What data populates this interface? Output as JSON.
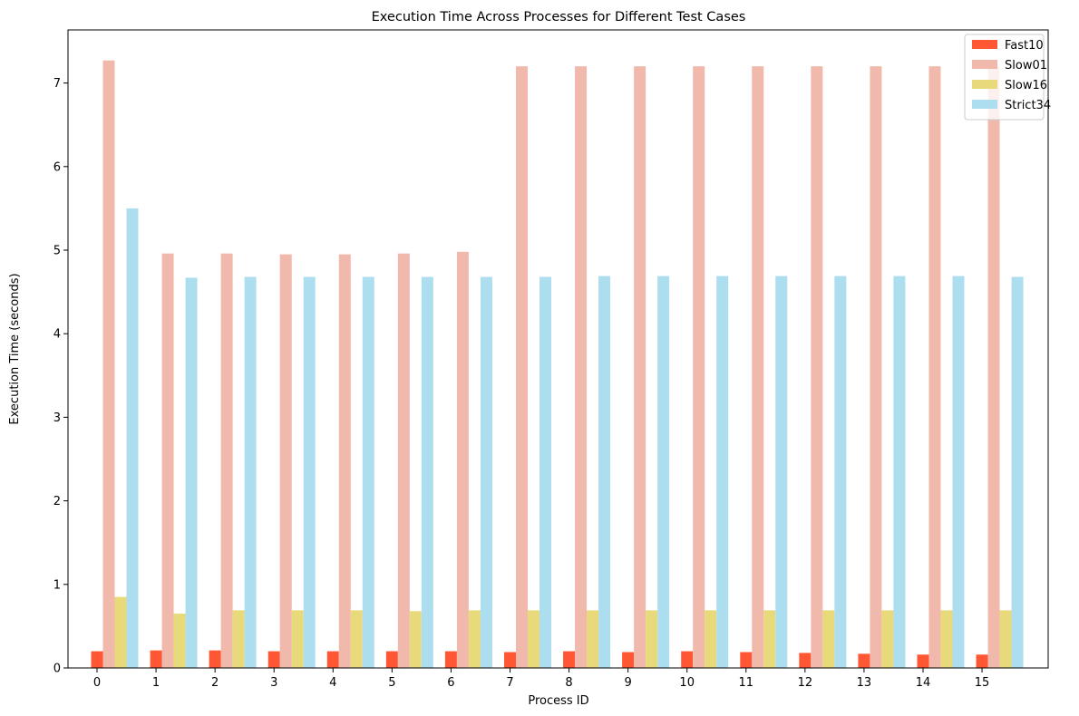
{
  "chart_data": {
    "type": "bar",
    "title": "Execution Time Across Processes for Different Test Cases",
    "xlabel": "Process ID",
    "ylabel": "Execution Time (seconds)",
    "categories": [
      "0",
      "1",
      "2",
      "3",
      "4",
      "5",
      "6",
      "7",
      "8",
      "9",
      "10",
      "11",
      "12",
      "13",
      "14",
      "15"
    ],
    "ylim": [
      0,
      7.65
    ],
    "yticks": [
      0,
      1,
      2,
      3,
      4,
      5,
      6,
      7
    ],
    "grid": false,
    "legend_position": "top-right",
    "series": [
      {
        "name": "Fast10",
        "color": "#ff5733",
        "values": [
          0.2,
          0.21,
          0.21,
          0.2,
          0.2,
          0.2,
          0.2,
          0.19,
          0.2,
          0.19,
          0.2,
          0.19,
          0.18,
          0.17,
          0.16,
          0.16
        ]
      },
      {
        "name": "Slow01",
        "color": "#f1b9ab",
        "values": [
          7.27,
          4.96,
          4.96,
          4.95,
          4.95,
          4.96,
          4.98,
          7.2,
          7.2,
          7.2,
          7.2,
          7.2,
          7.2,
          7.2,
          7.2,
          7.2
        ]
      },
      {
        "name": "Slow16",
        "color": "#e8d97a",
        "values": [
          0.85,
          0.65,
          0.69,
          0.69,
          0.69,
          0.68,
          0.69,
          0.69,
          0.69,
          0.69,
          0.69,
          0.69,
          0.69,
          0.69,
          0.69,
          0.69
        ]
      },
      {
        "name": "Strict34",
        "color": "#addeef",
        "values": [
          5.5,
          4.67,
          4.68,
          4.68,
          4.68,
          4.68,
          4.68,
          4.68,
          4.69,
          4.69,
          4.69,
          4.69,
          4.69,
          4.69,
          4.69,
          4.68
        ]
      }
    ]
  }
}
